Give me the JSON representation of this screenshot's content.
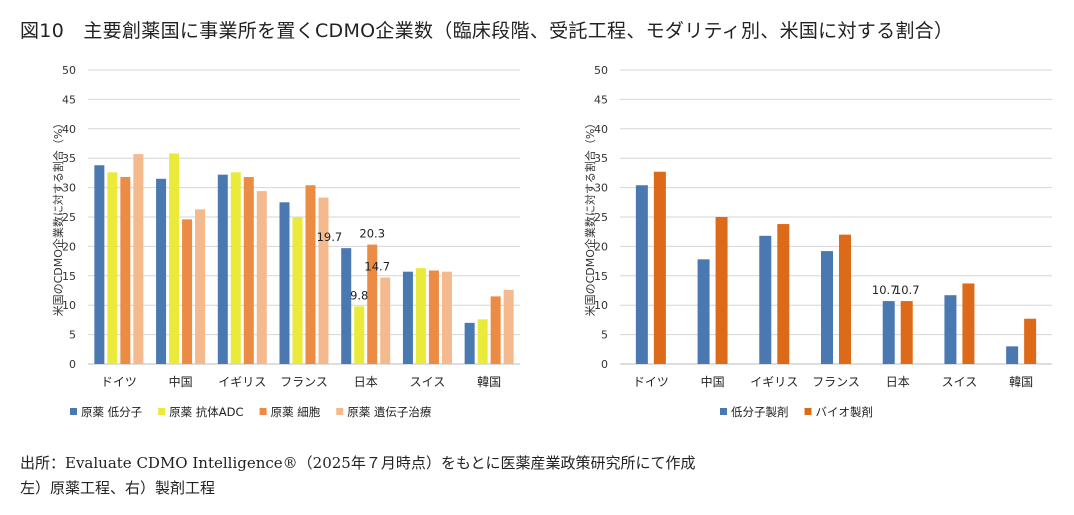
{
  "title": "図10　主要創薬国に事業所を置くCDMO企業数（臨床段階、受託工程、モダリティ別、米国に対する割合）",
  "footer": {
    "line1": "出所：Evaluate CDMO Intelligence®（2025年７月時点）をもとに医薬産業政策研究所にて作成",
    "line2": "左）原薬工程、右）製剤工程"
  },
  "chart_data": [
    {
      "type": "bar",
      "ylabel": "米国のCDMO企業数に対する割合（%）",
      "ylim": [
        0,
        50
      ],
      "yticks": [
        0,
        5,
        10,
        15,
        20,
        25,
        30,
        35,
        40,
        45,
        50
      ],
      "grid": true,
      "legend_position": "bottom",
      "categories": [
        "ドイツ",
        "中国",
        "イギリス",
        "フランス",
        "日本",
        "スイス",
        "韓国"
      ],
      "series": [
        {
          "name": "原薬 低分子",
          "color": "#4a78b0",
          "values": [
            33.8,
            31.5,
            32.2,
            27.5,
            19.7,
            15.7,
            7.0
          ]
        },
        {
          "name": "原薬 抗体ADC",
          "color": "#eaea3a",
          "values": [
            32.6,
            35.8,
            32.6,
            25.0,
            9.8,
            16.3,
            7.6
          ]
        },
        {
          "name": "原薬 細胞",
          "color": "#ec8c44",
          "values": [
            31.8,
            24.6,
            31.8,
            30.4,
            20.3,
            15.9,
            11.5
          ]
        },
        {
          "name": "原薬 遺伝子治療",
          "color": "#f4b98c",
          "values": [
            35.7,
            26.3,
            29.4,
            28.3,
            14.7,
            15.7,
            12.6
          ]
        }
      ],
      "data_labels": [
        {
          "series": 0,
          "category": 4,
          "text": "19.7"
        },
        {
          "series": 1,
          "category": 4,
          "text": "9.8"
        },
        {
          "series": 2,
          "category": 4,
          "text": "20.3"
        },
        {
          "series": 3,
          "category": 4,
          "text": "14.7"
        }
      ]
    },
    {
      "type": "bar",
      "ylabel": "米国のCDMO企業数に対する割合（%）",
      "ylim": [
        0,
        50
      ],
      "yticks": [
        0,
        5,
        10,
        15,
        20,
        25,
        30,
        35,
        40,
        45,
        50
      ],
      "grid": true,
      "legend_position": "bottom",
      "categories": [
        "ドイツ",
        "中国",
        "イギリス",
        "フランス",
        "日本",
        "スイス",
        "韓国"
      ],
      "series": [
        {
          "name": "低分子製剤",
          "color": "#4a78b0",
          "values": [
            30.4,
            17.8,
            21.8,
            19.2,
            10.7,
            11.7,
            3.0
          ]
        },
        {
          "name": "バイオ製剤",
          "color": "#dc6a18",
          "values": [
            32.7,
            25.0,
            23.8,
            22.0,
            10.7,
            13.7,
            7.7
          ]
        }
      ],
      "data_labels": [
        {
          "series": 0,
          "category": 4,
          "text": "10.7"
        },
        {
          "series": 1,
          "category": 4,
          "text": "10.7"
        }
      ]
    }
  ]
}
